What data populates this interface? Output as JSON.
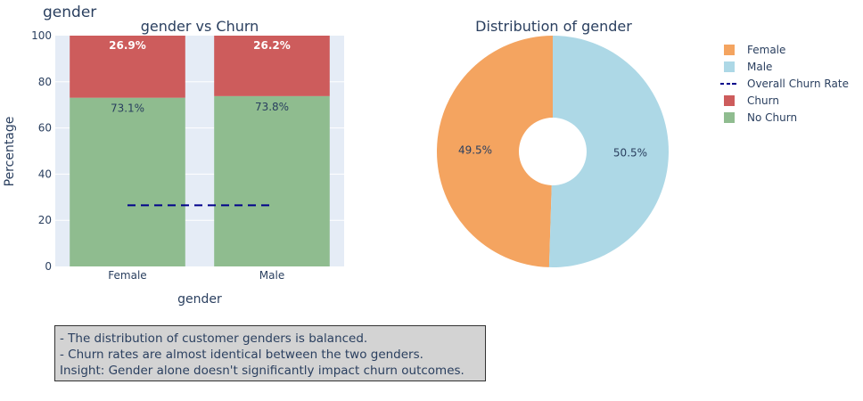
{
  "page_title": "gender",
  "colors": {
    "churn": "#cd5c5c",
    "no_churn": "#8fbc8f",
    "female": "#f4a460",
    "male": "#add8e6",
    "overall_line": "#00008b",
    "plot_bg": "#e5ecf6"
  },
  "chart_data": [
    {
      "type": "bar",
      "stacked": true,
      "title": "gender vs Churn",
      "xlabel": "gender",
      "ylabel": "Percentage",
      "ylim": [
        0,
        100
      ],
      "yticks": [
        "0",
        "20",
        "40",
        "60",
        "80",
        "100"
      ],
      "categories": [
        "Female",
        "Male"
      ],
      "series": [
        {
          "name": "No Churn",
          "values": [
            73.1,
            73.8
          ],
          "labels": [
            "73.1%",
            "73.8%"
          ]
        },
        {
          "name": "Churn",
          "values": [
            26.9,
            26.2
          ],
          "labels": [
            "26.9%",
            "26.2%"
          ]
        }
      ],
      "overall_churn_rate": {
        "name": "Overall Churn Rate",
        "value": 26.5
      },
      "grid": true
    },
    {
      "type": "pie",
      "hole": true,
      "title": "Distribution of gender",
      "labels": [
        "Female",
        "Male"
      ],
      "values": [
        49.5,
        50.5
      ],
      "value_labels": [
        "49.5%",
        "50.5%"
      ]
    }
  ],
  "legend": {
    "items": [
      "Female",
      "Male",
      "Overall Churn Rate",
      "Churn",
      "No Churn"
    ]
  },
  "insights": [
    "- The distribution of customer genders is balanced.",
    "- Churn rates are almost identical between the two genders.",
    "Insight: Gender alone doesn't significantly impact churn outcomes."
  ]
}
